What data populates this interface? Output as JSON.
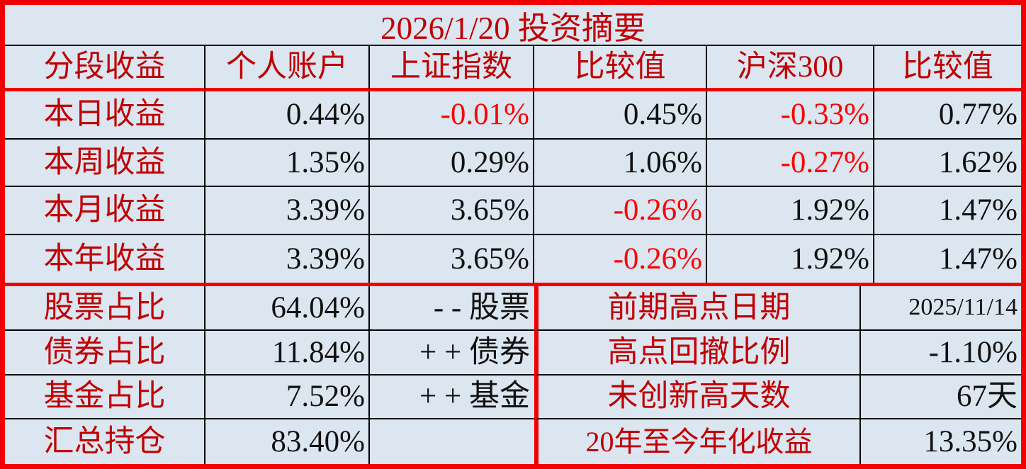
{
  "title": "2026/1/20 投资摘要",
  "colors": {
    "label_red": "#c00000",
    "negative_red": "#ff0000",
    "border_red": "#f20000",
    "text_black": "#111111",
    "background": "#dce6f1"
  },
  "header": {
    "col1": "分段收益",
    "col2": "个人账户",
    "col3": "上证指数",
    "col4": "比较值",
    "col5": "沪深300",
    "col6": "比较值"
  },
  "returns_rows": [
    {
      "label": "本日收益",
      "account": "0.44%",
      "sse": "-0.01%",
      "cmp1": "0.45%",
      "csi300": "-0.33%",
      "cmp2": "0.77%"
    },
    {
      "label": "本周收益",
      "account": "1.35%",
      "sse": "0.29%",
      "cmp1": "1.06%",
      "csi300": "-0.27%",
      "cmp2": "1.62%"
    },
    {
      "label": "本月收益",
      "account": "3.39%",
      "sse": "3.65%",
      "cmp1": "-0.26%",
      "csi300": "1.92%",
      "cmp2": "1.47%"
    },
    {
      "label": "本年收益",
      "account": "3.39%",
      "sse": "3.65%",
      "cmp1": "-0.26%",
      "csi300": "1.92%",
      "cmp2": "1.47%"
    }
  ],
  "allocation_rows": [
    {
      "label": "股票占比",
      "value": "64.04%",
      "note": "- - 股票"
    },
    {
      "label": "债券占比",
      "value": "11.84%",
      "note": "+ + 债券"
    },
    {
      "label": "基金占比",
      "value": "7.52%",
      "note": "+ + 基金"
    },
    {
      "label": "汇总持仓",
      "value": "83.40%",
      "note": ""
    }
  ],
  "stats_rows": [
    {
      "label": "前期高点日期",
      "value": "2025/11/14"
    },
    {
      "label": "高点回撤比例",
      "value": "-1.10%"
    },
    {
      "label": "未创新高天数",
      "value": "67天"
    },
    {
      "label": "20年至今年化收益",
      "value": "13.35%"
    }
  ]
}
